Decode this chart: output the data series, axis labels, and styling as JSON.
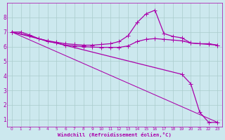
{
  "background_color": "#cce8ee",
  "grid_color": "#aacccc",
  "line_color": "#aa00aa",
  "xlabel": "Windchill (Refroidissement éolien,°C)",
  "xlim": [
    -0.5,
    23.5
  ],
  "ylim": [
    0.5,
    9
  ],
  "yticks": [
    1,
    2,
    3,
    4,
    5,
    6,
    7,
    8
  ],
  "xticks": [
    0,
    1,
    2,
    3,
    4,
    5,
    6,
    7,
    8,
    9,
    10,
    11,
    12,
    13,
    14,
    15,
    16,
    17,
    18,
    19,
    20,
    21,
    22,
    23
  ],
  "line1_x": [
    0,
    1,
    2,
    3,
    4,
    5,
    6,
    7,
    8,
    9,
    10,
    11,
    12,
    13,
    14,
    15,
    16,
    17,
    18,
    19,
    20,
    21,
    22,
    23
  ],
  "line1_y": [
    7.0,
    7.0,
    6.8,
    6.55,
    6.4,
    6.3,
    6.2,
    6.15,
    6.1,
    6.1,
    6.15,
    6.2,
    6.35,
    6.75,
    7.65,
    8.25,
    8.5,
    6.9,
    6.7,
    6.6,
    6.25,
    6.2,
    6.2,
    6.1
  ],
  "line2_x": [
    0,
    2,
    3,
    4,
    5,
    6,
    7,
    8,
    9,
    10,
    11,
    12,
    13,
    14,
    15,
    16,
    17,
    18,
    19,
    20,
    21,
    22,
    23
  ],
  "line2_y": [
    7.0,
    6.75,
    6.55,
    6.35,
    6.25,
    6.1,
    6.05,
    6.0,
    5.97,
    5.95,
    5.95,
    5.95,
    6.05,
    6.35,
    6.5,
    6.55,
    6.5,
    6.45,
    6.4,
    6.25,
    6.2,
    6.15,
    6.1
  ],
  "line3_x": [
    0,
    23
  ],
  "line3_y": [
    7.0,
    0.8
  ],
  "line4_x": [
    0,
    19,
    20,
    21,
    22,
    23
  ],
  "line4_y": [
    7.0,
    4.1,
    3.45,
    1.5,
    0.8,
    0.8
  ],
  "markersize": 2.2,
  "linewidth": 0.9,
  "linewidth_thin": 0.75
}
